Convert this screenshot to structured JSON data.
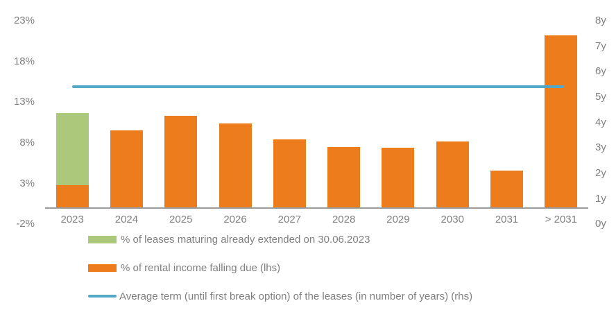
{
  "colors": {
    "extended_green": "#ACC87B",
    "rental_orange": "#ED7D1C",
    "avg_term_blue": "#54A8C7",
    "text_gray": "#7F7F7F",
    "axis_line_gray": "#9C9C9C"
  },
  "chart_data": {
    "type": "combo-stacked-bar-line",
    "categories": [
      "2023",
      "2024",
      "2025",
      "2026",
      "2027",
      "2028",
      "2029",
      "2030",
      "2031",
      "> 2031"
    ],
    "series": [
      {
        "name": "% of leases maturing already extended on 30.06.2023",
        "type": "bar",
        "axis": "left",
        "color_key": "extended_green",
        "stack_level": 1,
        "values": [
          8.9,
          0,
          0,
          0,
          0,
          0,
          0,
          0,
          0,
          0
        ]
      },
      {
        "name": "% of rental income falling due (lhs)",
        "type": "bar",
        "axis": "left",
        "color_key": "rental_orange",
        "stack_level": 0,
        "values": [
          2.8,
          9.5,
          11.3,
          10.4,
          8.4,
          7.5,
          7.4,
          8.2,
          4.6,
          21.2
        ]
      },
      {
        "name": "Average term (until first break option) of the leases (in number of years) (rhs)",
        "type": "line",
        "axis": "right",
        "color_key": "avg_term_blue",
        "values": [
          5.4,
          5.4,
          5.4,
          5.4,
          5.4,
          5.4,
          5.4,
          5.4,
          5.4,
          5.4
        ]
      }
    ],
    "left_axis": {
      "tick_labels": [
        "23%",
        "18%",
        "13%",
        "8%",
        "3%",
        "-2%"
      ],
      "tick_values": [
        23,
        18,
        13,
        8,
        3,
        -2
      ],
      "min": -2,
      "max": 23
    },
    "right_axis": {
      "tick_labels": [
        "8y",
        "7y",
        "6y",
        "5y",
        "4y",
        "3y",
        "2y",
        "1y",
        "0y"
      ],
      "tick_values": [
        8,
        7,
        6,
        5,
        4,
        3,
        2,
        1,
        0
      ],
      "min": 0,
      "max": 8
    },
    "grid": "off",
    "legend_position": "bottom-left"
  },
  "legend": {
    "items": [
      {
        "label": "% of leases maturing already extended on 30.06.2023",
        "color_key": "extended_green",
        "shape": "rect"
      },
      {
        "label": "% of rental income falling due (lhs)",
        "color_key": "rental_orange",
        "shape": "rect"
      },
      {
        "label": "Average term (until first break option) of the leases (in number of years) (rhs)",
        "color_key": "avg_term_blue",
        "shape": "line"
      }
    ]
  }
}
